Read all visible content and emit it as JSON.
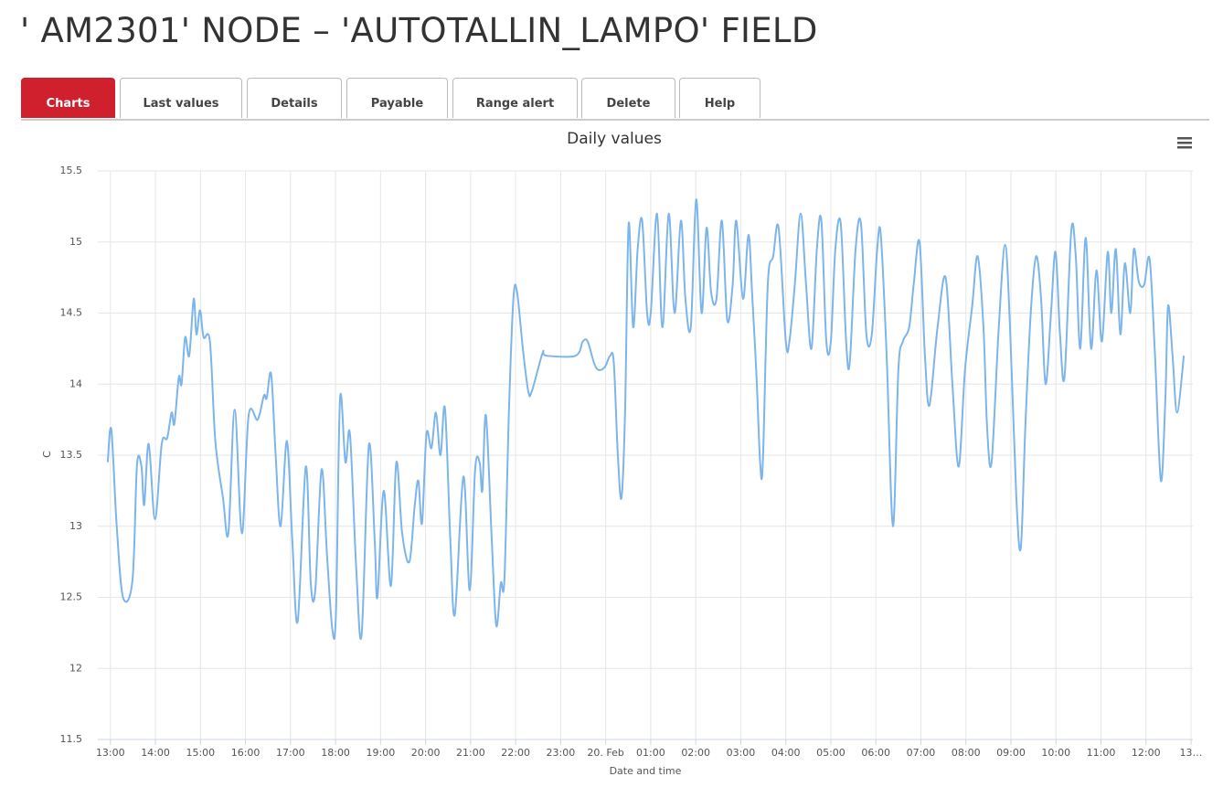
{
  "header": {
    "title": "' AM2301' NODE – 'AUTOTALLIN_LAMPO' FIELD"
  },
  "tabs": [
    "Charts",
    "Last values",
    "Details",
    "Payable",
    "Range alert",
    "Delete",
    "Help"
  ],
  "chart_data": {
    "type": "line",
    "title": "Daily values",
    "xlabel": "Date and time",
    "ylabel": "C",
    "color": "#7cb5ec",
    "grid": true,
    "xlim": [
      12.72,
      37.04
    ],
    "xticks": [
      {
        "value": 13,
        "label": "13:00"
      },
      {
        "value": 14,
        "label": "14:00"
      },
      {
        "value": 15,
        "label": "15:00"
      },
      {
        "value": 16,
        "label": "16:00"
      },
      {
        "value": 17,
        "label": "17:00"
      },
      {
        "value": 18,
        "label": "18:00"
      },
      {
        "value": 19,
        "label": "19:00"
      },
      {
        "value": 20,
        "label": "20:00"
      },
      {
        "value": 21,
        "label": "21:00"
      },
      {
        "value": 22,
        "label": "22:00"
      },
      {
        "value": 23,
        "label": "23:00"
      },
      {
        "value": 24,
        "label": "20. Feb"
      },
      {
        "value": 25,
        "label": "01:00"
      },
      {
        "value": 26,
        "label": "02:00"
      },
      {
        "value": 27,
        "label": "03:00"
      },
      {
        "value": 28,
        "label": "04:00"
      },
      {
        "value": 29,
        "label": "05:00"
      },
      {
        "value": 30,
        "label": "06:00"
      },
      {
        "value": 31,
        "label": "07:00"
      },
      {
        "value": 32,
        "label": "08:00"
      },
      {
        "value": 33,
        "label": "09:00"
      },
      {
        "value": 34,
        "label": "10:00"
      },
      {
        "value": 35,
        "label": "11:00"
      },
      {
        "value": 36,
        "label": "12:00"
      },
      {
        "value": 37,
        "label": "13…"
      }
    ],
    "ylim": [
      11.5,
      15.5
    ],
    "yticks": [
      11.5,
      12,
      12.5,
      13,
      13.5,
      14,
      14.5,
      15,
      15.5
    ],
    "x": [
      12.94,
      13.02,
      13.14,
      13.28,
      13.49,
      13.59,
      13.69,
      13.75,
      13.85,
      13.99,
      14.14,
      14.26,
      14.36,
      14.42,
      14.52,
      14.58,
      14.66,
      14.75,
      14.85,
      14.91,
      14.99,
      15.07,
      15.21,
      15.33,
      15.5,
      15.62,
      15.76,
      15.92,
      16.07,
      16.27,
      16.41,
      16.47,
      16.57,
      16.67,
      16.78,
      16.92,
      17.04,
      17.16,
      17.34,
      17.45,
      17.55,
      17.69,
      17.81,
      17.93,
      18.01,
      18.1,
      18.22,
      18.32,
      18.46,
      18.58,
      18.74,
      18.87,
      18.93,
      19.07,
      19.23,
      19.35,
      19.48,
      19.64,
      19.76,
      19.84,
      19.92,
      20.02,
      20.13,
      20.23,
      20.33,
      20.43,
      20.55,
      20.65,
      20.84,
      20.98,
      21.1,
      21.2,
      21.26,
      21.34,
      21.47,
      21.57,
      21.67,
      21.75,
      21.85,
      21.95,
      22.03,
      22.16,
      22.28,
      22.36,
      22.6,
      22.68,
      23.33,
      23.49,
      23.6,
      23.74,
      23.84,
      23.98,
      24.1,
      24.18,
      24.27,
      24.35,
      24.43,
      24.51,
      24.61,
      24.71,
      24.81,
      24.92,
      25,
      25.14,
      25.26,
      25.4,
      25.53,
      25.67,
      25.77,
      25.89,
      26.01,
      26.13,
      26.24,
      26.34,
      26.46,
      26.58,
      26.7,
      26.82,
      26.9,
      27.05,
      27.17,
      27.25,
      27.35,
      27.43,
      27.49,
      27.6,
      27.72,
      27.84,
      28,
      28.08,
      28.2,
      28.33,
      28.45,
      28.57,
      28.69,
      28.79,
      28.9,
      29,
      29.1,
      29.22,
      29.34,
      29.42,
      29.55,
      29.67,
      29.79,
      29.91,
      30.03,
      30.11,
      30.24,
      30.38,
      30.5,
      30.6,
      30.74,
      30.84,
      30.97,
      31.09,
      31.19,
      31.37,
      31.55,
      31.7,
      31.84,
      31.98,
      32.14,
      32.26,
      32.39,
      32.47,
      32.57,
      32.73,
      32.87,
      32.98,
      33.12,
      33.22,
      33.32,
      33.44,
      33.56,
      33.67,
      33.77,
      33.89,
      33.99,
      34.09,
      34.19,
      34.34,
      34.44,
      34.54,
      34.66,
      34.78,
      34.9,
      35.02,
      35.15,
      35.23,
      35.33,
      35.43,
      35.53,
      35.65,
      35.73,
      35.84,
      35.96,
      36.08,
      36.2,
      36.33,
      36.43,
      36.49,
      36.59,
      36.69,
      36.84
    ],
    "values": [
      13.45,
      13.68,
      13,
      12.5,
      12.62,
      13.43,
      13.42,
      13.15,
      13.58,
      13.05,
      13.58,
      13.62,
      13.8,
      13.72,
      14.05,
      14,
      14.33,
      14.2,
      14.6,
      14.35,
      14.52,
      14.33,
      14.3,
      13.6,
      13.2,
      12.95,
      13.82,
      12.95,
      13.78,
      13.75,
      13.92,
      13.9,
      14.07,
      13.5,
      13,
      13.6,
      12.9,
      12.33,
      13.42,
      12.6,
      12.55,
      13.4,
      12.8,
      12.27,
      12.4,
      13.9,
      13.45,
      13.65,
      12.7,
      12.24,
      13.57,
      12.9,
      12.5,
      13.25,
      12.58,
      13.45,
      12.95,
      12.75,
      13.15,
      13.32,
      13.02,
      13.65,
      13.55,
      13.8,
      13.5,
      13.83,
      12.9,
      12.38,
      13.35,
      12.55,
      13.4,
      13.45,
      13.25,
      13.78,
      12.9,
      12.3,
      12.6,
      12.62,
      13.8,
      14.6,
      14.65,
      14.25,
      13.95,
      13.95,
      14.22,
      14.2,
      14.2,
      14.3,
      14.3,
      14.15,
      14.1,
      14.12,
      14.2,
      14.15,
      13.5,
      13.2,
      13.8,
      15.13,
      14.4,
      14.95,
      15.15,
      14.5,
      14.5,
      15.2,
      14.4,
      15.2,
      14.5,
      15.15,
      14.6,
      14.4,
      15.3,
      14.5,
      15.1,
      14.65,
      14.6,
      15.15,
      14.45,
      14.7,
      15.15,
      14.6,
      15.05,
      14.65,
      14.05,
      13.45,
      13.45,
      14.7,
      14.9,
      15.1,
      14.3,
      14.3,
      14.7,
      15.2,
      14.7,
      14.25,
      14.95,
      15.15,
      14.3,
      14.3,
      14.95,
      15.13,
      14.3,
      14.15,
      14.95,
      15.13,
      14.35,
      14.35,
      14.95,
      15.05,
      14.2,
      13,
      14.1,
      14.3,
      14.4,
      14.7,
      15,
      14.2,
      13.85,
      14.4,
      14.75,
      14,
      13.42,
      14.1,
      14.55,
      14.9,
      14.4,
      13.7,
      13.45,
      14.4,
      14.98,
      14.4,
      13.2,
      12.85,
      13.7,
      14.5,
      14.9,
      14.6,
      14,
      14.5,
      14.93,
      14.35,
      14.05,
      15.08,
      14.9,
      14.25,
      15.03,
      14.25,
      14.8,
      14.3,
      14.93,
      14.5,
      14.95,
      14.35,
      14.85,
      14.5,
      14.95,
      14.72,
      14.7,
      14.88,
      14.2,
      13.32,
      13.9,
      14.55,
      14.2,
      13.8,
      14.2
    ]
  }
}
